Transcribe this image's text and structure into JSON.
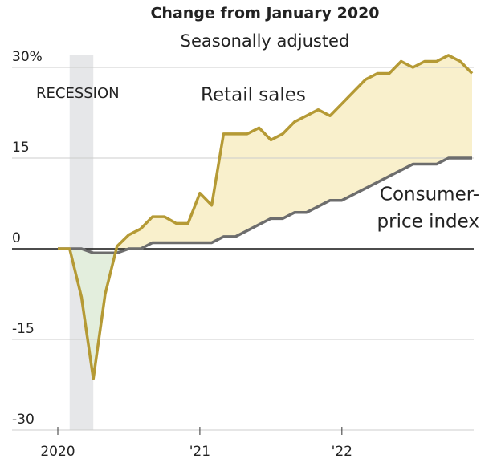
{
  "chart_data": {
    "type": "line",
    "title": "Change from January 2020",
    "subtitle": "Seasonally adjusted",
    "x": [
      0,
      1,
      2,
      3,
      4,
      5,
      6,
      7,
      8,
      9,
      10,
      11,
      12,
      13,
      14,
      15,
      16,
      17,
      18,
      19,
      20,
      21,
      22,
      23,
      24,
      25,
      26,
      27,
      28,
      29,
      30,
      31,
      32,
      33,
      34,
      35
    ],
    "series": [
      {
        "name": "Retail sales",
        "color": "#b59a35",
        "values": [
          0,
          0,
          -8,
          -21.5,
          -7.5,
          0.4,
          2.3,
          3.3,
          5.3,
          5.3,
          4.2,
          4.2,
          9.2,
          7.2,
          19,
          19,
          19,
          20,
          18,
          19,
          21,
          22,
          23,
          22,
          24,
          26,
          28,
          29,
          29,
          31,
          30,
          31,
          31,
          32,
          31,
          29
        ]
      },
      {
        "name": "Consumer-price index",
        "color": "#6d6d6d",
        "values": [
          0,
          0,
          0,
          -0.7,
          -0.7,
          -0.7,
          0,
          0,
          1,
          1,
          1,
          1,
          1,
          1,
          2,
          2,
          3,
          4,
          5,
          5,
          6,
          6,
          7,
          8,
          8,
          9,
          10,
          11,
          12,
          13,
          14,
          14,
          14,
          15,
          15,
          15
        ]
      }
    ],
    "annotations": [
      {
        "text": "Retail sales"
      },
      {
        "text": "Consumer-"
      },
      {
        "text": "price index"
      }
    ],
    "recession": {
      "label": "RECESSION",
      "start": 1,
      "end": 3
    },
    "xlim": [
      0,
      35
    ],
    "xticks": [
      {
        "value": 0,
        "label": "2020"
      },
      {
        "value": 12,
        "label": "'21"
      },
      {
        "value": 24,
        "label": "'22"
      }
    ],
    "ylim": [
      -30,
      30
    ],
    "yticks": [
      {
        "value": 30,
        "label": "30%"
      },
      15,
      0,
      -15,
      -30
    ],
    "grid": true
  }
}
